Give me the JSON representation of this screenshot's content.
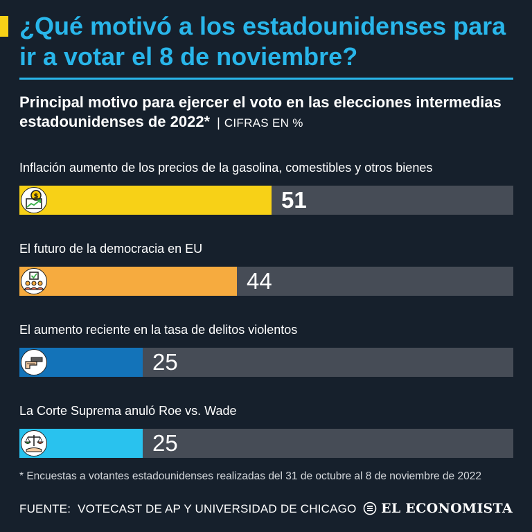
{
  "title": "¿Qué motivó a los estadounidenses para ir a votar el 8 de noviembre?",
  "subtitle": "Principal motivo para ejercer el voto en las elecciones intermedias estadounidenses de 2022*",
  "separator": "|",
  "units_label": "CIFRAS EN  %",
  "chart_data": {
    "type": "bar",
    "orientation": "horizontal",
    "title": "Principal motivo para ejercer el voto en las elecciones intermedias estadounidenses de 2022*",
    "units": "%",
    "xlim": [
      0,
      100
    ],
    "categories": [
      "Inflación aumento de los precios de la gasolina, comestibles y otros bienes",
      "El futuro de la democracia en EU",
      "El aumento reciente en la tasa de delitos violentos",
      "La Corte Suprema anuló Roe vs. Wade"
    ],
    "values": [
      51,
      44,
      25,
      25
    ],
    "colors": [
      "#f7d117",
      "#f6ab3f",
      "#1373b9",
      "#29c2ee"
    ],
    "icons": [
      "money-growth-icon",
      "voting-people-icon",
      "gun-icon",
      "justice-scale-icon"
    ]
  },
  "footnote": "* Encuestas a votantes estadounidenses realizadas del 31 de octubre al 8 de noviembre de 2022",
  "source": {
    "label": "FUENTE:",
    "text": "VOTECAST DE AP Y UNIVERSIDAD DE CHICAGO"
  },
  "logo": "EL ECONOMISTA",
  "colors": {
    "background": "#16202c",
    "title": "#29b6ea",
    "track": "#464c56",
    "accent": "#f7d117"
  }
}
